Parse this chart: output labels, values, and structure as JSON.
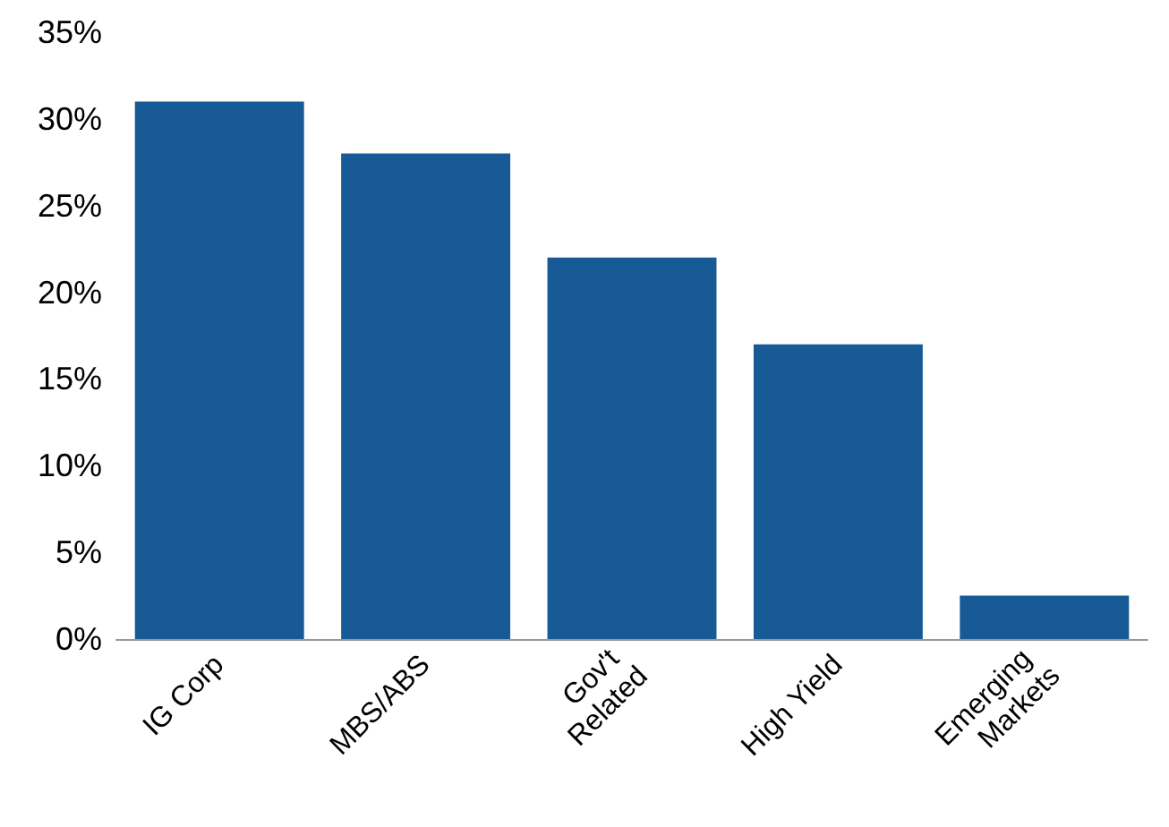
{
  "chart_data": {
    "type": "bar",
    "categories": [
      "IG Corp",
      "MBS/ABS",
      "Gov't Related",
      "High Yield",
      "Emerging Markets"
    ],
    "values": [
      31,
      28,
      22,
      17,
      2.5
    ],
    "color": "#175a96",
    "ylim": [
      0,
      35
    ],
    "yticks": [
      {
        "value": 0,
        "label": "0%"
      },
      {
        "value": 5,
        "label": "5%"
      },
      {
        "value": 10,
        "label": "10%"
      },
      {
        "value": 15,
        "label": "15%"
      },
      {
        "value": 20,
        "label": "20%"
      },
      {
        "value": 25,
        "label": "25%"
      },
      {
        "value": 30,
        "label": "30%"
      },
      {
        "value": 35,
        "label": "35%"
      }
    ],
    "grid": false
  }
}
